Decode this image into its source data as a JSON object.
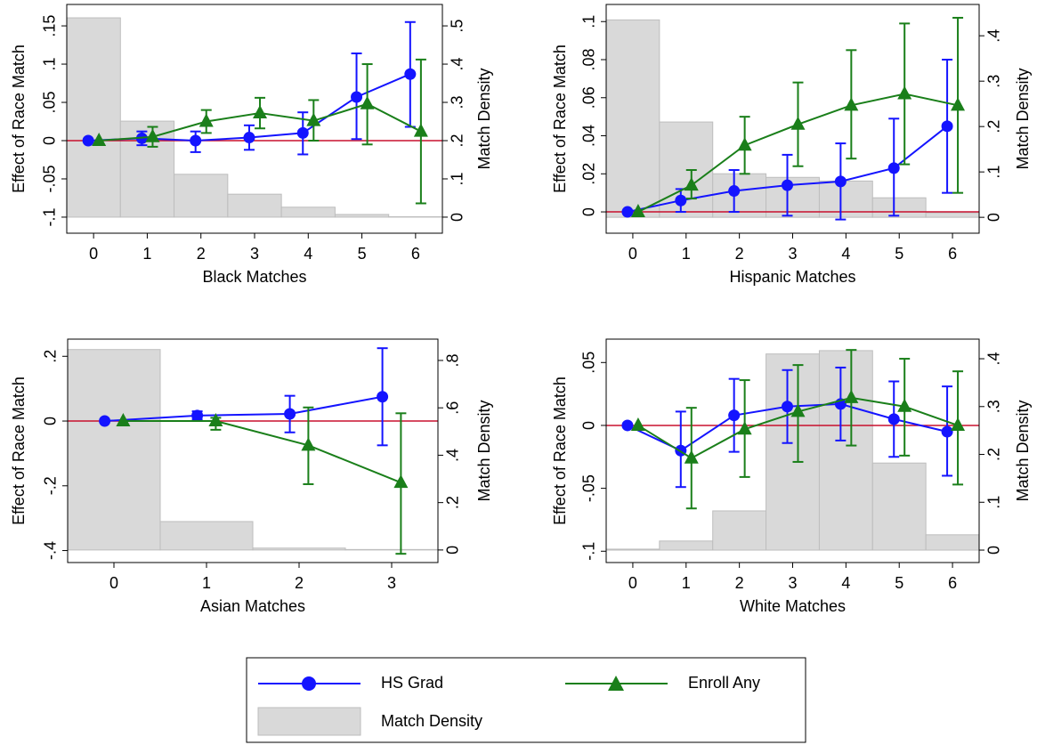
{
  "chart_data": [
    {
      "type": "line",
      "xlabel": "Black Matches",
      "ylabel": "Effect of Race Match",
      "y2label": "Match Density",
      "x": [
        0,
        1,
        2,
        3,
        4,
        5,
        6
      ],
      "xlim": [
        -0.5,
        6.5
      ],
      "xticks": [
        0,
        1,
        2,
        3,
        4,
        5,
        6
      ],
      "ylim": [
        -0.121,
        0.178
      ],
      "yticks": [
        {
          "value": -0.1,
          "label": "-.1"
        },
        {
          "value": -0.05,
          "label": "-.05"
        },
        0,
        {
          "value": 0.05,
          "label": ".05"
        },
        {
          "value": 0.1,
          "label": ".1"
        },
        {
          "value": 0.15,
          "label": ".15"
        }
      ],
      "y2lim": [
        -0.042,
        0.556
      ],
      "y2ticks": [
        0,
        {
          "value": 0.1,
          "label": ".1"
        },
        {
          "value": 0.2,
          "label": ".2"
        },
        {
          "value": 0.3,
          "label": ".3"
        },
        {
          "value": 0.4,
          "label": ".4"
        },
        {
          "value": 0.5,
          "label": ".5"
        }
      ],
      "reference_line": {
        "value": 0,
        "color": "#c8102e"
      },
      "series": [
        {
          "name": "HS Grad",
          "type": "line",
          "marker": "circle",
          "color": "#1414ff",
          "values": [
            0,
            0.003,
            0,
            0.004,
            0.01,
            0.057,
            0.087
          ],
          "lower": [
            null,
            -0.006,
            -0.015,
            -0.012,
            -0.018,
            0.002,
            0.018
          ],
          "upper": [
            null,
            0.012,
            0.012,
            0.02,
            0.037,
            0.114,
            0.155
          ]
        },
        {
          "name": "Enroll Any",
          "type": "line",
          "marker": "triangle",
          "color": "#1a7f1a",
          "values": [
            0,
            0.005,
            0.025,
            0.036,
            0.026,
            0.048,
            0.012
          ],
          "lower": [
            null,
            -0.008,
            0.01,
            0.016,
            0,
            -0.005,
            -0.082
          ],
          "upper": [
            null,
            0.018,
            0.04,
            0.056,
            0.053,
            0.1,
            0.106
          ]
        },
        {
          "name": "Match Density",
          "type": "bar",
          "axis": "y2",
          "color": "#d9d9d9",
          "values": [
            0.521,
            0.251,
            0.112,
            0.06,
            0.026,
            0.007,
            0.001
          ]
        }
      ]
    },
    {
      "type": "line",
      "xlabel": "Hispanic Matches",
      "ylabel": "Effect of Race Match",
      "y2label": "Match Density",
      "x": [
        0,
        1,
        2,
        3,
        4,
        5,
        6
      ],
      "xlim": [
        -0.5,
        6.5
      ],
      "xticks": [
        0,
        1,
        2,
        3,
        4,
        5,
        6
      ],
      "ylim": [
        -0.0112,
        0.109
      ],
      "yticks": [
        0,
        {
          "value": 0.02,
          "label": ".02"
        },
        {
          "value": 0.04,
          "label": ".04"
        },
        {
          "value": 0.06,
          "label": ".06"
        },
        {
          "value": 0.08,
          "label": ".08"
        },
        {
          "value": 0.1,
          "label": ".1"
        }
      ],
      "y2lim": [
        -0.035,
        0.469
      ],
      "y2ticks": [
        0,
        {
          "value": 0.1,
          "label": ".1"
        },
        {
          "value": 0.2,
          "label": ".2"
        },
        {
          "value": 0.3,
          "label": ".3"
        },
        {
          "value": 0.4,
          "label": ".4"
        }
      ],
      "reference_line": {
        "value": 0,
        "color": "#c8102e"
      },
      "series": [
        {
          "name": "HS Grad",
          "type": "line",
          "marker": "circle",
          "color": "#1414ff",
          "values": [
            0,
            0.006,
            0.011,
            0.014,
            0.016,
            0.023,
            0.045
          ],
          "lower": [
            null,
            0,
            0,
            -0.002,
            -0.004,
            -0.002,
            0.01
          ],
          "upper": [
            null,
            0.012,
            0.022,
            0.03,
            0.036,
            0.049,
            0.08
          ]
        },
        {
          "name": "Enroll Any",
          "type": "line",
          "marker": "triangle",
          "color": "#1a7f1a",
          "values": [
            0,
            0.014,
            0.035,
            0.046,
            0.056,
            0.062,
            0.056
          ],
          "lower": [
            null,
            0.007,
            0.02,
            0.024,
            0.028,
            0.025,
            0.01
          ],
          "upper": [
            null,
            0.022,
            0.05,
            0.068,
            0.085,
            0.099,
            0.102
          ]
        },
        {
          "name": "Match Density",
          "type": "bar",
          "axis": "y2",
          "color": "#d9d9d9",
          "values": [
            0.435,
            0.21,
            0.096,
            0.088,
            0.08,
            0.043,
            0.01
          ]
        }
      ]
    },
    {
      "type": "line",
      "xlabel": "Asian Matches",
      "ylabel": "Effect of Race Match",
      "y2label": "Match Density",
      "x": [
        0,
        1,
        2,
        3
      ],
      "xlim": [
        -0.5,
        3.5
      ],
      "xticks": [
        0,
        1,
        2,
        3
      ],
      "ylim": [
        -0.437,
        0.253
      ],
      "yticks": [
        {
          "value": -0.4,
          "label": "-.4"
        },
        {
          "value": -0.2,
          "label": "-.2"
        },
        0,
        {
          "value": 0.2,
          "label": ".2"
        }
      ],
      "y2lim": [
        -0.053,
        0.89
      ],
      "y2ticks": [
        0,
        {
          "value": 0.2,
          "label": ".2"
        },
        {
          "value": 0.4,
          "label": ".4"
        },
        {
          "value": 0.6,
          "label": ".6"
        },
        {
          "value": 0.8,
          "label": ".8"
        }
      ],
      "reference_line": {
        "value": 0,
        "color": "#c8102e"
      },
      "series": [
        {
          "name": "HS Grad",
          "type": "line",
          "marker": "circle",
          "color": "#1414ff",
          "values": [
            0,
            0.017,
            0.022,
            0.075
          ],
          "lower": [
            null,
            0.005,
            -0.035,
            -0.075
          ],
          "upper": [
            null,
            0.03,
            0.078,
            0.225
          ]
        },
        {
          "name": "Enroll Any",
          "type": "line",
          "marker": "triangle",
          "color": "#1a7f1a",
          "values": [
            0,
            0,
            -0.075,
            -0.19
          ],
          "lower": [
            null,
            -0.027,
            -0.195,
            -0.41
          ],
          "upper": [
            null,
            0.01,
            0.042,
            0.024
          ]
        },
        {
          "name": "Match Density",
          "type": "bar",
          "axis": "y2",
          "color": "#d9d9d9",
          "values": [
            0.846,
            0.12,
            0.008,
            0.002
          ]
        }
      ]
    },
    {
      "type": "line",
      "xlabel": "White Matches",
      "ylabel": "Effect of Race Match",
      "y2label": "Match Density",
      "x": [
        0,
        1,
        2,
        3,
        4,
        5,
        6
      ],
      "xlim": [
        -0.5,
        6.5
      ],
      "xticks": [
        0,
        1,
        2,
        3,
        4,
        5,
        6
      ],
      "ylim": [
        -0.109,
        0.0686
      ],
      "yticks": [
        {
          "value": -0.1,
          "label": "-.1"
        },
        {
          "value": -0.05,
          "label": "-.05"
        },
        0,
        {
          "value": 0.05,
          "label": ".05"
        }
      ],
      "y2lim": [
        -0.026,
        0.441
      ],
      "y2ticks": [
        0,
        {
          "value": 0.1,
          "label": ".1"
        },
        {
          "value": 0.2,
          "label": ".2"
        },
        {
          "value": 0.3,
          "label": ".3"
        },
        {
          "value": 0.4,
          "label": ".4"
        }
      ],
      "reference_line": {
        "value": 0,
        "color": "#c8102e"
      },
      "series": [
        {
          "name": "HS Grad",
          "type": "line",
          "marker": "circle",
          "color": "#1414ff",
          "values": [
            0,
            -0.02,
            0.008,
            0.015,
            0.017,
            0.005,
            -0.005
          ],
          "lower": [
            null,
            -0.049,
            -0.021,
            -0.014,
            -0.012,
            -0.025,
            -0.04
          ],
          "upper": [
            null,
            0.011,
            0.037,
            0.044,
            0.046,
            0.035,
            0.031
          ]
        },
        {
          "name": "Enroll Any",
          "type": "line",
          "marker": "triangle",
          "color": "#1a7f1a",
          "values": [
            0,
            -0.026,
            -0.003,
            0.011,
            0.022,
            0.015,
            0
          ],
          "lower": [
            null,
            -0.066,
            -0.041,
            -0.029,
            -0.016,
            -0.024,
            -0.047
          ],
          "upper": [
            null,
            0.014,
            0.036,
            0.048,
            0.06,
            0.053,
            0.043
          ]
        },
        {
          "name": "Match Density",
          "type": "bar",
          "axis": "y2",
          "color": "#d9d9d9",
          "values": [
            0.002,
            0.019,
            0.082,
            0.41,
            0.417,
            0.182,
            0.032
          ]
        }
      ]
    }
  ]
}
